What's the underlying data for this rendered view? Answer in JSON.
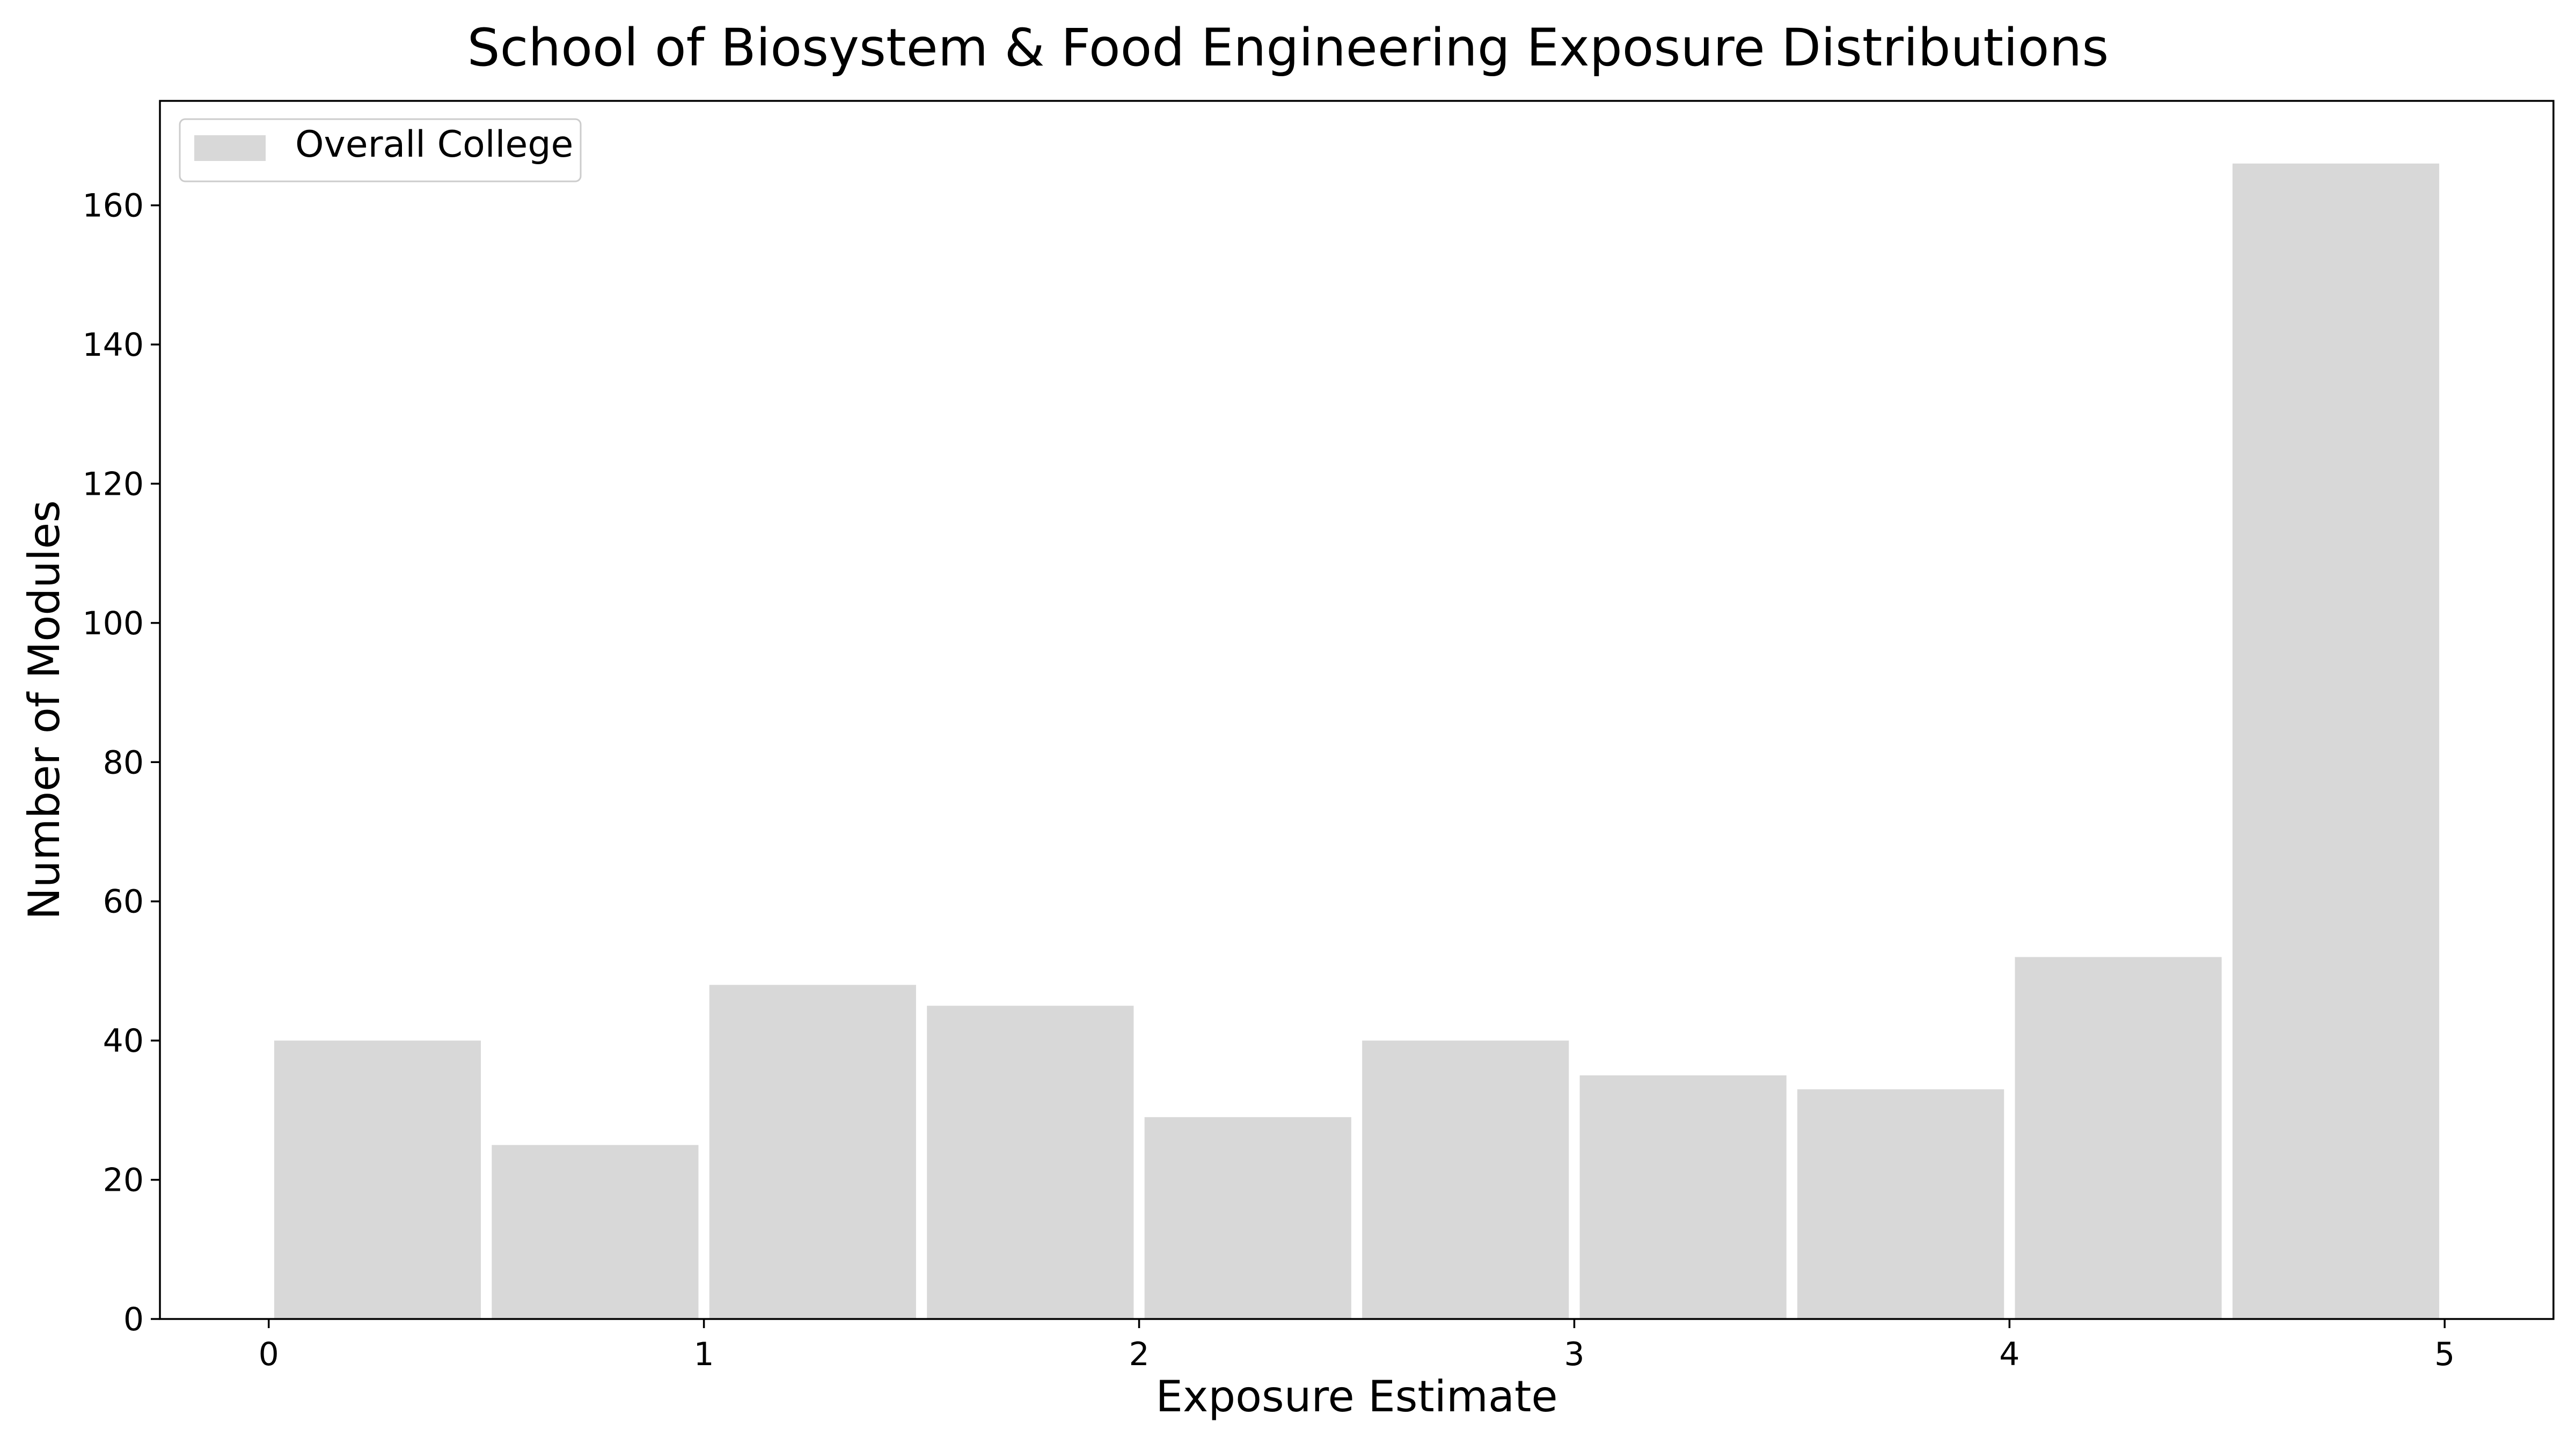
{
  "chart_data": {
    "type": "bar",
    "title": "School of Biosystem & Food Engineering Exposure Distributions",
    "xlabel": "Exposure Estimate",
    "ylabel": "Number of Modules",
    "xlim": [
      -0.25,
      5.25
    ],
    "ylim": [
      0,
      175
    ],
    "xticks": [
      0,
      1,
      2,
      3,
      4,
      5
    ],
    "yticks": [
      0,
      20,
      40,
      60,
      80,
      100,
      120,
      140,
      160
    ],
    "bins": [
      {
        "x0": 0.0,
        "x1": 0.5,
        "value": 40
      },
      {
        "x0": 0.5,
        "x1": 1.0,
        "value": 25
      },
      {
        "x0": 1.0,
        "x1": 1.5,
        "value": 48
      },
      {
        "x0": 1.5,
        "x1": 2.0,
        "value": 45
      },
      {
        "x0": 2.0,
        "x1": 2.5,
        "value": 29
      },
      {
        "x0": 2.5,
        "x1": 3.0,
        "value": 40
      },
      {
        "x0": 3.0,
        "x1": 3.5,
        "value": 35
      },
      {
        "x0": 3.5,
        "x1": 4.0,
        "value": 33
      },
      {
        "x0": 4.0,
        "x1": 4.5,
        "value": 52
      },
      {
        "x0": 4.5,
        "x1": 5.0,
        "value": 166
      }
    ],
    "series_name": "Overall College",
    "bar_color": "#d8d8d8",
    "grid": false,
    "legend": "top-left"
  }
}
